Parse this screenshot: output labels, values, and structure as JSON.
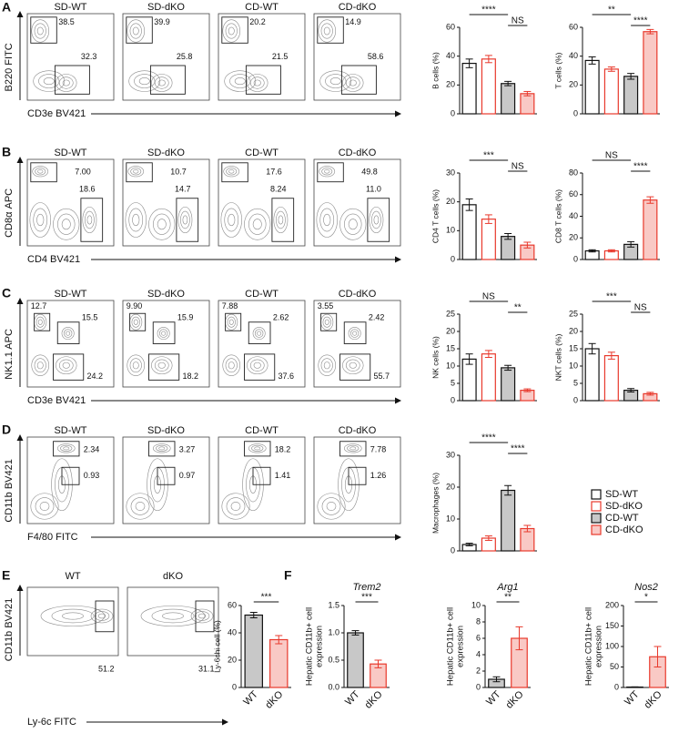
{
  "panel_labels": [
    "A",
    "B",
    "C",
    "D",
    "E",
    "F"
  ],
  "flow_rows": [
    {
      "y_axis": "B220 FITC",
      "x_axis": "CD3e BV421",
      "plots": [
        {
          "title": "SD-WT",
          "gates": [
            "38.5",
            "32.3"
          ]
        },
        {
          "title": "SD-dKO",
          "gates": [
            "39.9",
            "25.8"
          ]
        },
        {
          "title": "CD-WT",
          "gates": [
            "20.2",
            "21.5"
          ]
        },
        {
          "title": "CD-dKO",
          "gates": [
            "14.9",
            "58.6"
          ]
        }
      ]
    },
    {
      "y_axis": "CD8α APC",
      "x_axis": "CD4 BV421",
      "plots": [
        {
          "title": "SD-WT",
          "gates": [
            "7.00",
            "18.6"
          ]
        },
        {
          "title": "SD-dKO",
          "gates": [
            "10.7",
            "14.7"
          ]
        },
        {
          "title": "CD-WT",
          "gates": [
            "17.6",
            "8.24"
          ]
        },
        {
          "title": "CD-dKO",
          "gates": [
            "49.8",
            "11.0"
          ]
        }
      ]
    },
    {
      "y_axis": "NK1.1 APC",
      "x_axis": "CD3e BV421",
      "plots": [
        {
          "title": "SD-WT",
          "gates": [
            "12.7",
            "15.5",
            "24.2"
          ]
        },
        {
          "title": "SD-dKO",
          "gates": [
            "9.90",
            "15.9",
            "18.2"
          ]
        },
        {
          "title": "CD-WT",
          "gates": [
            "7.88",
            "2.62",
            "37.6"
          ]
        },
        {
          "title": "CD-dKO",
          "gates": [
            "3.55",
            "2.42",
            "55.7"
          ]
        }
      ]
    },
    {
      "y_axis": "CD11b BV421",
      "x_axis": "F4/80 FITC",
      "plots": [
        {
          "title": "SD-WT",
          "gates": [
            "2.34",
            "0.93"
          ]
        },
        {
          "title": "SD-dKO",
          "gates": [
            "3.27",
            "0.97"
          ]
        },
        {
          "title": "CD-WT",
          "gates": [
            "18.2",
            "1.41"
          ]
        },
        {
          "title": "CD-dKO",
          "gates": [
            "7.78",
            "1.26"
          ]
        }
      ]
    },
    {
      "y_axis": "CD11b BV421",
      "x_axis": "Ly-6c FITC",
      "plots": [
        {
          "title": "WT",
          "gates": [
            "51.2"
          ]
        },
        {
          "title": "dKO",
          "gates": [
            "31.1"
          ]
        }
      ]
    }
  ],
  "legend": [
    {
      "name": "SD-WT",
      "fill": "#ffffff",
      "edge": "#111111"
    },
    {
      "name": "SD-dKO",
      "fill": "#ffffff",
      "edge": "#e8392c"
    },
    {
      "name": "CD-WT",
      "fill": "#c8c8c8",
      "edge": "#111111"
    },
    {
      "name": "CD-dKO",
      "fill": "#f9c9c5",
      "edge": "#e8392c"
    }
  ],
  "chart_data": [
    {
      "type": "bar",
      "y_label": "B cells (%)",
      "values": [
        35,
        38,
        21,
        14
      ],
      "errors": [
        3,
        2.5,
        1.5,
        1.5
      ],
      "fills": [
        "#ffffff",
        "#ffffff",
        "#c8c8c8",
        "#f9c9c5"
      ],
      "edges": [
        "#111111",
        "#e8392c",
        "#111111",
        "#e8392c"
      ],
      "ylim": [
        0,
        60
      ],
      "yticks": [
        0,
        20,
        40,
        60
      ],
      "significance": [
        "****",
        "NS"
      ]
    },
    {
      "type": "bar",
      "y_label": "T cells (%)",
      "values": [
        37,
        31,
        26,
        57
      ],
      "errors": [
        2.5,
        1.5,
        2,
        1.5
      ],
      "fills": [
        "#ffffff",
        "#ffffff",
        "#c8c8c8",
        "#f9c9c5"
      ],
      "edges": [
        "#111111",
        "#e8392c",
        "#111111",
        "#e8392c"
      ],
      "ylim": [
        0,
        60
      ],
      "yticks": [
        0,
        20,
        40,
        60
      ],
      "significance": [
        "**",
        "****"
      ]
    },
    {
      "type": "bar",
      "y_label": "CD4 T cells (%)",
      "values": [
        19,
        14,
        8,
        5
      ],
      "errors": [
        2,
        1.5,
        1,
        1
      ],
      "fills": [
        "#ffffff",
        "#ffffff",
        "#c8c8c8",
        "#f9c9c5"
      ],
      "edges": [
        "#111111",
        "#e8392c",
        "#111111",
        "#e8392c"
      ],
      "ylim": [
        0,
        30
      ],
      "yticks": [
        0,
        10,
        20,
        30
      ],
      "significance": [
        "***",
        "NS"
      ]
    },
    {
      "type": "bar",
      "y_label": "CD8 T cells (%)",
      "values": [
        8,
        8,
        14,
        55
      ],
      "errors": [
        1,
        1,
        2.5,
        3
      ],
      "fills": [
        "#ffffff",
        "#ffffff",
        "#c8c8c8",
        "#f9c9c5"
      ],
      "edges": [
        "#111111",
        "#e8392c",
        "#111111",
        "#e8392c"
      ],
      "ylim": [
        0,
        80
      ],
      "yticks": [
        0,
        20,
        40,
        60,
        80
      ],
      "significance": [
        "NS",
        "****"
      ]
    },
    {
      "type": "bar",
      "y_label": "NK cells (%)",
      "values": [
        12,
        13.5,
        9.5,
        3
      ],
      "errors": [
        1.5,
        1,
        0.7,
        0.4
      ],
      "fills": [
        "#ffffff",
        "#ffffff",
        "#c8c8c8",
        "#f9c9c5"
      ],
      "edges": [
        "#111111",
        "#e8392c",
        "#111111",
        "#e8392c"
      ],
      "ylim": [
        0,
        25
      ],
      "yticks": [
        0,
        5,
        10,
        15,
        20,
        25
      ],
      "significance": [
        "NS",
        "**"
      ]
    },
    {
      "type": "bar",
      "y_label": "NKT cells (%)",
      "values": [
        15,
        13,
        3,
        2
      ],
      "errors": [
        1.5,
        1,
        0.5,
        0.4
      ],
      "fills": [
        "#ffffff",
        "#ffffff",
        "#c8c8c8",
        "#f9c9c5"
      ],
      "edges": [
        "#111111",
        "#e8392c",
        "#111111",
        "#e8392c"
      ],
      "ylim": [
        0,
        25
      ],
      "yticks": [
        0,
        5,
        10,
        15,
        20,
        25
      ],
      "significance": [
        "***",
        "NS"
      ]
    },
    {
      "type": "bar",
      "y_label": "Macrophages (%)",
      "values": [
        2,
        4,
        19,
        7
      ],
      "errors": [
        0.4,
        0.7,
        1.5,
        1
      ],
      "fills": [
        "#ffffff",
        "#ffffff",
        "#c8c8c8",
        "#f9c9c5"
      ],
      "edges": [
        "#111111",
        "#e8392c",
        "#111111",
        "#e8392c"
      ],
      "ylim": [
        0,
        30
      ],
      "yticks": [
        0,
        10,
        20,
        30
      ],
      "significance": [
        "****",
        "****"
      ]
    },
    {
      "type": "bar",
      "y_label": "Ly-6chi cell (%)",
      "categories": [
        "WT",
        "dKO"
      ],
      "values": [
        53,
        35
      ],
      "errors": [
        2,
        3
      ],
      "fills": [
        "#c8c8c8",
        "#f9c9c5"
      ],
      "edges": [
        "#111111",
        "#e8392c"
      ],
      "ylim": [
        0,
        60
      ],
      "yticks": [
        0,
        20,
        40,
        60
      ],
      "significance": [
        "***"
      ]
    },
    {
      "type": "bar",
      "title": "Trem2",
      "y_label_lines": [
        "Hepatic CD11b+ cell",
        "expression"
      ],
      "categories": [
        "WT",
        "dKO"
      ],
      "values": [
        1.0,
        0.43
      ],
      "errors": [
        0.04,
        0.07
      ],
      "fills": [
        "#c8c8c8",
        "#f9c9c5"
      ],
      "edges": [
        "#111111",
        "#e8392c"
      ],
      "ylim": [
        0,
        1.5
      ],
      "yticks": [
        {
          "value": 0,
          "label": "0.0"
        },
        {
          "value": 0.5,
          "label": "0.5"
        },
        {
          "value": 1,
          "label": "1.0"
        },
        {
          "value": 1.5,
          "label": "1.5"
        }
      ],
      "significance": [
        "***"
      ]
    },
    {
      "type": "bar",
      "title": "Arg1",
      "y_label_lines": [
        "Hepatic CD11b+ cell",
        "expression"
      ],
      "categories": [
        "WT",
        "dKO"
      ],
      "values": [
        1,
        6
      ],
      "errors": [
        0.3,
        1.4
      ],
      "fills": [
        "#c8c8c8",
        "#f9c9c5"
      ],
      "edges": [
        "#111111",
        "#e8392c"
      ],
      "ylim": [
        0,
        10
      ],
      "yticks": [
        0,
        2,
        4,
        6,
        8,
        10
      ],
      "significance": [
        "**"
      ]
    },
    {
      "type": "bar",
      "title": "Nos2",
      "y_label_lines": [
        "Hepatic CD11b+ cell",
        "expression"
      ],
      "categories": [
        "WT",
        "dKO"
      ],
      "values": [
        1,
        75
      ],
      "errors": [
        0.5,
        25
      ],
      "fills": [
        "#c8c8c8",
        "#f9c9c5"
      ],
      "edges": [
        "#111111",
        "#e8392c"
      ],
      "ylim": [
        0,
        200
      ],
      "yticks": [
        0,
        50,
        100,
        150,
        200
      ],
      "significance": [
        "*"
      ]
    }
  ]
}
